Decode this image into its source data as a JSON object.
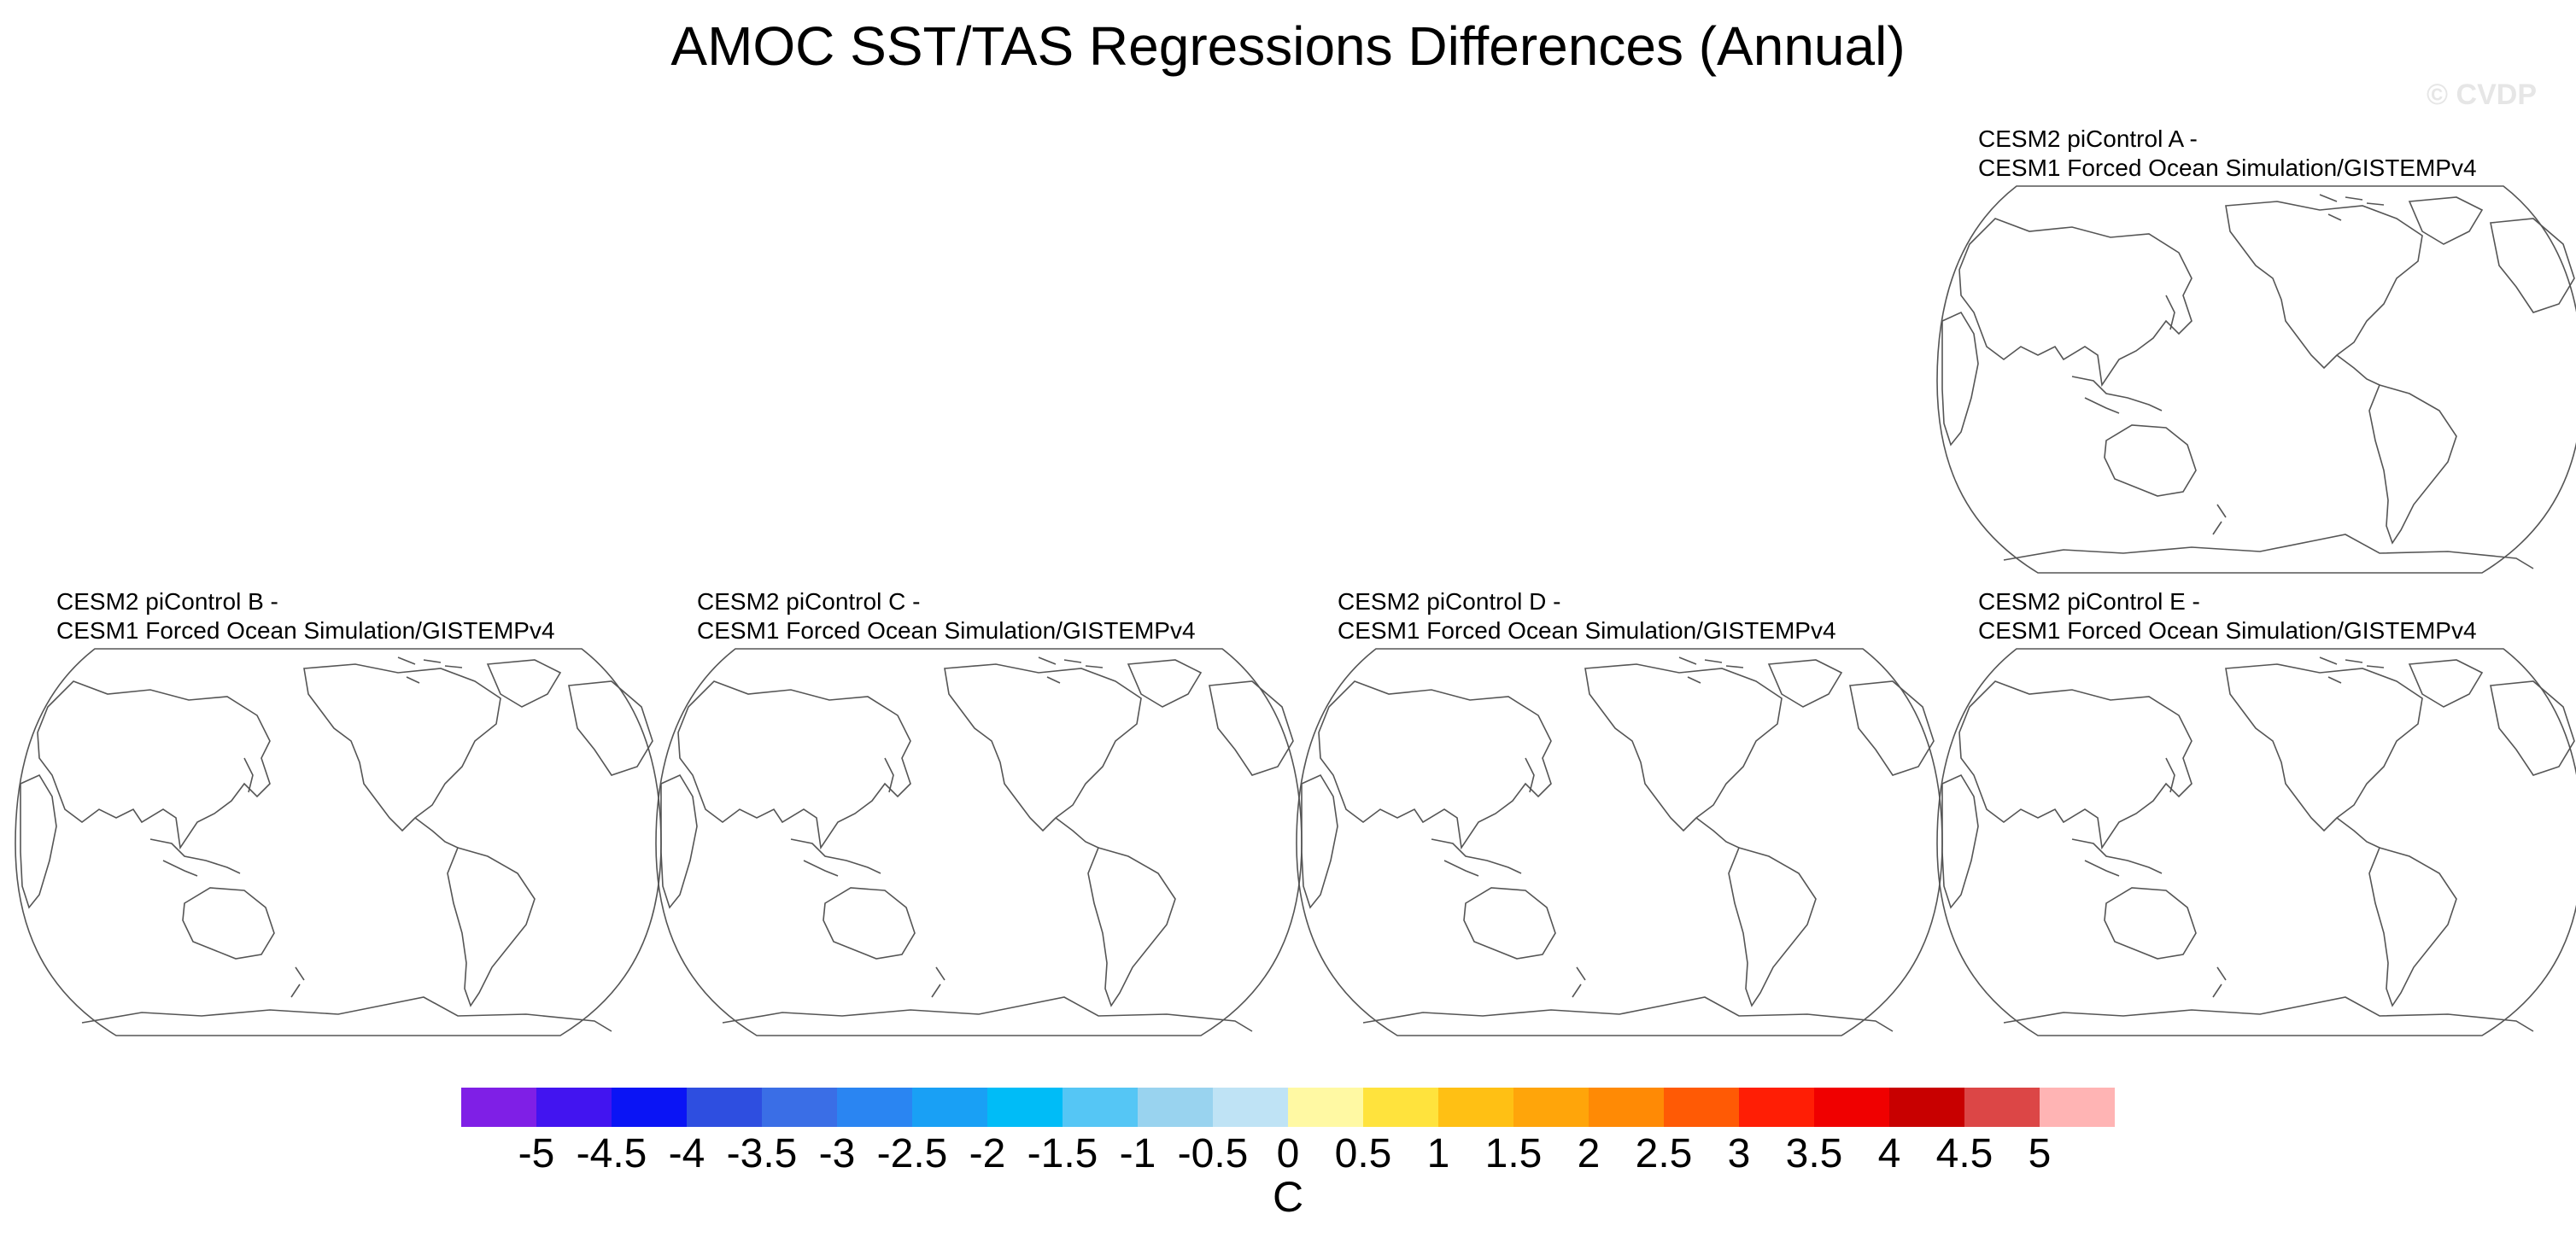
{
  "title": "AMOC SST/TAS Regressions Differences (Annual)",
  "watermark": "© CVDP",
  "panels": [
    {
      "id": "A",
      "line1": "CESM2 piControl A -",
      "line2": "CESM1 Forced Ocean Simulation/GISTEMPv4"
    },
    {
      "id": "B",
      "line1": "CESM2 piControl B -",
      "line2": "CESM1 Forced Ocean Simulation/GISTEMPv4"
    },
    {
      "id": "C",
      "line1": "CESM2 piControl C -",
      "line2": "CESM1 Forced Ocean Simulation/GISTEMPv4"
    },
    {
      "id": "D",
      "line1": "CESM2 piControl D -",
      "line2": "CESM1 Forced Ocean Simulation/GISTEMPv4"
    },
    {
      "id": "E",
      "line1": "CESM2 piControl E -",
      "line2": "CESM1 Forced Ocean Simulation/GISTEMPv4"
    }
  ],
  "colorbar": {
    "unit": "C",
    "ticks": [
      "-5",
      "-4.5",
      "-4",
      "-3.5",
      "-3",
      "-2.5",
      "-2",
      "-1.5",
      "-1",
      "-0.5",
      "0",
      "0.5",
      "1",
      "1.5",
      "2",
      "2.5",
      "3",
      "3.5",
      "4",
      "4.5",
      "5"
    ],
    "colors": [
      "#7f1fe6",
      "#4214f0",
      "#0a14f5",
      "#2e4ee0",
      "#3a6ee6",
      "#2a85f2",
      "#19a0f5",
      "#00bcf7",
      "#55c6f5",
      "#99d3ef",
      "#bfe3f5",
      "#fff9a3",
      "#ffe33d",
      "#ffc014",
      "#ffa50a",
      "#ff8a05",
      "#ff5a05",
      "#ff1e05",
      "#f00000",
      "#c80000",
      "#dc4646",
      "#ffb4b4"
    ]
  }
}
